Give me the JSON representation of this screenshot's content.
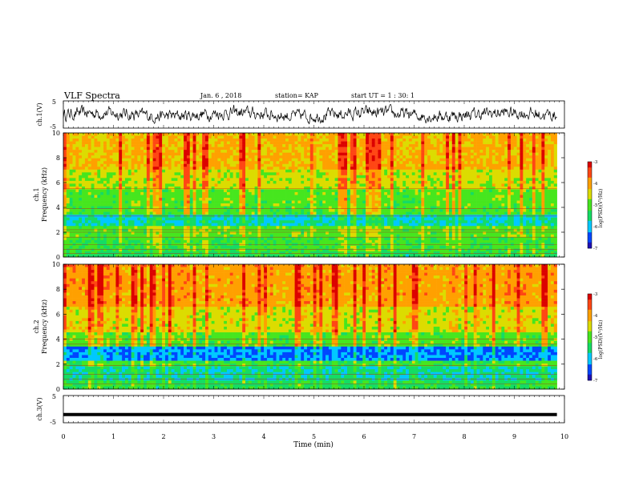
{
  "header": {
    "title": "VLF Spectra",
    "date": "Jan. 6 , 2018",
    "station": "station= KAP",
    "start": "start  UT =   1 : 30: 1"
  },
  "colors": {
    "spec_scale": [
      "#1e0fb4",
      "#0046ff",
      "#00c8ff",
      "#14dc64",
      "#46e61e",
      "#dcdc00",
      "#ffa000",
      "#ff4614",
      "#dc0000"
    ],
    "trace": "#000000"
  },
  "chart_data": [
    {
      "type": "line",
      "panel": "ch1-waveform",
      "ylabel": "ch.1(V)",
      "ylim": [
        -5,
        5
      ],
      "yticks": [
        "5",
        "-5"
      ],
      "xlim": [
        0,
        10
      ],
      "description_values": {
        "mean": 0,
        "amplitude": 2.2,
        "duration_min": 9.85
      }
    },
    {
      "type": "heatmap",
      "panel": "ch1-spectrogram",
      "ylabel_top": "ch.1",
      "ylabel": "Frequency (kHz)",
      "ylim": [
        0,
        10
      ],
      "yticks": [
        "0",
        "2",
        "4",
        "6",
        "8",
        "10"
      ],
      "xlim": [
        0,
        10
      ],
      "duration_min": 9.85,
      "bands": [
        {
          "from": 0.0,
          "to": 0.5,
          "level": -5.4
        },
        {
          "from": 0.5,
          "to": 1.5,
          "level": -5.2
        },
        {
          "from": 1.5,
          "to": 2.5,
          "level": -5.0
        },
        {
          "from": 2.5,
          "to": 3.3,
          "level": -5.8
        },
        {
          "from": 3.3,
          "to": 4.0,
          "level": -5.1
        },
        {
          "from": 4.0,
          "to": 5.5,
          "level": -5.0
        },
        {
          "from": 5.5,
          "to": 7.0,
          "level": -4.6
        },
        {
          "from": 7.0,
          "to": 10.0,
          "level": -4.2
        }
      ],
      "lines_khz": [
        0.3,
        0.6,
        1.0,
        1.6,
        2.0,
        2.2,
        3.3,
        3.9,
        5.5
      ]
    },
    {
      "type": "heatmap",
      "panel": "ch2-spectrogram",
      "ylabel_top": "ch.2",
      "ylabel": "Frequency (kHz)",
      "ylim": [
        0,
        10
      ],
      "yticks": [
        "0",
        "2",
        "4",
        "6",
        "8",
        "10"
      ],
      "xlim": [
        0,
        10
      ],
      "duration_min": 9.85,
      "bands": [
        {
          "from": 0.0,
          "to": 0.6,
          "level": -5.4
        },
        {
          "from": 0.6,
          "to": 1.8,
          "level": -5.7
        },
        {
          "from": 1.8,
          "to": 2.2,
          "level": -5.2
        },
        {
          "from": 2.2,
          "to": 3.3,
          "level": -6.3
        },
        {
          "from": 3.3,
          "to": 4.5,
          "level": -5.0
        },
        {
          "from": 4.5,
          "to": 6.5,
          "level": -4.5
        },
        {
          "from": 6.5,
          "to": 10.0,
          "level": -4.0
        }
      ],
      "lines_khz": [
        0.4,
        0.8,
        1.2,
        1.9,
        3.6,
        4.0
      ]
    },
    {
      "type": "line",
      "panel": "ch3-waveform",
      "ylabel": "ch.3(V)",
      "ylim": [
        -5,
        5
      ],
      "yticks": [
        "5",
        "-5"
      ],
      "xlim": [
        0,
        10
      ],
      "xlabel": "Time (min)",
      "xticks": [
        "0",
        "1",
        "2",
        "3",
        "4",
        "5",
        "6",
        "7",
        "8",
        "9",
        "10"
      ],
      "constant_value": -2,
      "duration_min": 9.85
    }
  ],
  "colorbars": [
    {
      "label": "log(PSD)(V²/Hz)",
      "ticks": [
        "-3",
        "-4",
        "-5",
        "-6",
        "-7"
      ],
      "range": [
        -7,
        -3
      ]
    },
    {
      "label": "log(PSD)(V²/Hz)",
      "ticks": [
        "-3",
        "-4",
        "-5",
        "-6",
        "-7"
      ],
      "range": [
        -7,
        -3
      ]
    }
  ]
}
